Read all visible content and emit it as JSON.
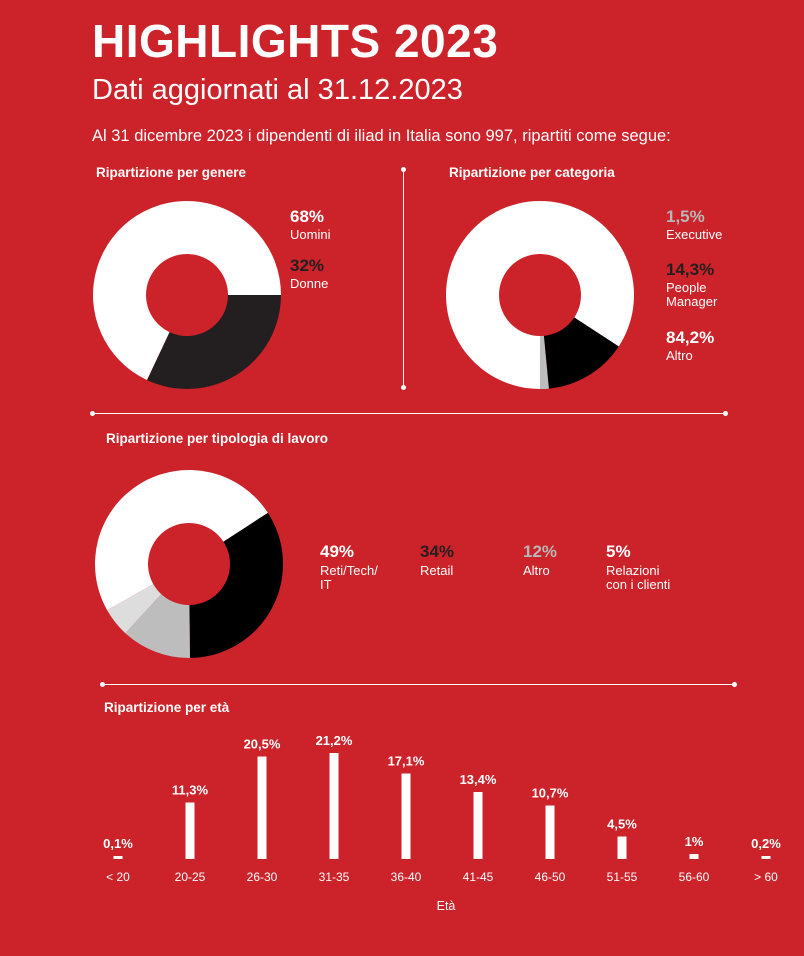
{
  "header": {
    "title": "HIGHLIGHTS 2023",
    "subtitle": "Dati aggiornati al 31.12.2023",
    "intro": "Al 31 dicembre 2023 i dipendenti di iliad in Italia sono 997, ripartiti come segue:"
  },
  "colors": {
    "background": "#cc2229",
    "white": "#ffffff",
    "dark": "#231f20",
    "black": "#000000",
    "light_gray": "#dddddd",
    "mid_gray": "#bdbdbd",
    "gray_label": "#b7b7b7",
    "dark_label": "#231f20"
  },
  "chart_data": [
    {
      "id": "genere",
      "type": "pie",
      "title": "Ripartizione per genere",
      "slices": [
        {
          "pct_label": "68%",
          "label": "Uomini",
          "value": 68,
          "color": "#ffffff"
        },
        {
          "pct_label": "32%",
          "label": "Donne",
          "value": 32,
          "color": "#231f20"
        }
      ]
    },
    {
      "id": "categoria",
      "type": "pie",
      "title": "Ripartizione per categoria",
      "slices": [
        {
          "pct_label": "1,5%",
          "label": "Executive",
          "value": 1.5,
          "color": "#bdbdbd"
        },
        {
          "pct_label": "14,3%",
          "label": "People Manager",
          "label_lines": [
            "People",
            "Manager"
          ],
          "value": 14.3,
          "color": "#000000"
        },
        {
          "pct_label": "84,2%",
          "label": "Altro",
          "value": 84.2,
          "color": "#ffffff"
        }
      ]
    },
    {
      "id": "tipologia",
      "type": "pie",
      "title": "Ripartizione per tipologia di lavoro",
      "slices": [
        {
          "pct_label": "49%",
          "label": "Reti/Tech/IT",
          "label_lines": [
            "Reti/Tech/",
            "IT"
          ],
          "value": 49,
          "color": "#ffffff"
        },
        {
          "pct_label": "34%",
          "label": "Retail",
          "value": 34,
          "color": "#000000"
        },
        {
          "pct_label": "12%",
          "label": "Altro",
          "value": 12,
          "color": "#bdbdbd"
        },
        {
          "pct_label": "5%",
          "label": "Relazioni con i clienti",
          "label_lines": [
            "Relazioni",
            "con i clienti"
          ],
          "value": 5,
          "color": "#dddddd"
        }
      ]
    },
    {
      "id": "eta",
      "type": "bar",
      "title": "Ripartizione per età",
      "xlabel": "Età",
      "ylabel": "",
      "categories": [
        "< 20",
        "20-25",
        "26-30",
        "31-35",
        "36-40",
        "41-45",
        "46-50",
        "51-55",
        "56-60",
        "> 60"
      ],
      "values": [
        0.1,
        11.3,
        20.5,
        21.2,
        17.1,
        13.4,
        10.7,
        4.5,
        1,
        0.2
      ],
      "value_labels": [
        "0,1%",
        "11,3%",
        "20,5%",
        "21,2%",
        "17,1%",
        "13,4%",
        "10,7%",
        "4,5%",
        "1%",
        "0,2%"
      ],
      "ylim": [
        0,
        21.2
      ]
    }
  ]
}
